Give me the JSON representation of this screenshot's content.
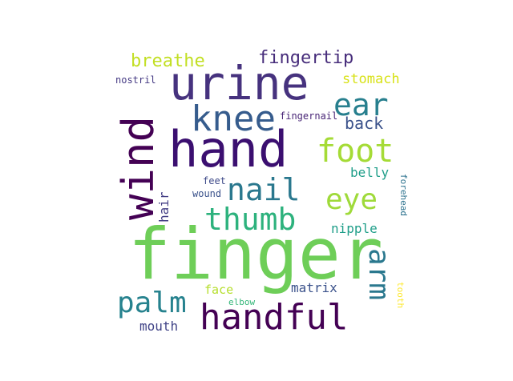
{
  "words": [
    {
      "text": "finger",
      "color": "#6ece58"
    },
    {
      "text": "hand",
      "color": "#3b0f70"
    },
    {
      "text": "urine",
      "color": "#46327e"
    },
    {
      "text": "wind",
      "color": "#440154"
    },
    {
      "text": "handful",
      "color": "#440154"
    },
    {
      "text": "knee",
      "color": "#365c8d"
    },
    {
      "text": "foot",
      "color": "#a5db36"
    },
    {
      "text": "ear",
      "color": "#277f8e"
    },
    {
      "text": "thumb",
      "color": "#2db27d"
    },
    {
      "text": "nail",
      "color": "#2a788e"
    },
    {
      "text": "eye",
      "color": "#9fda3a"
    },
    {
      "text": "palm",
      "color": "#26828e"
    },
    {
      "text": "arm",
      "color": "#2a788e"
    },
    {
      "text": "fingertip",
      "color": "#472d7b"
    },
    {
      "text": "breathe",
      "color": "#c2df23"
    },
    {
      "text": "back",
      "color": "#3b528b"
    },
    {
      "text": "stomach",
      "color": "#d8e219"
    },
    {
      "text": "belly",
      "color": "#1f9e89"
    },
    {
      "text": "nipple",
      "color": "#1f9e89"
    },
    {
      "text": "matrix",
      "color": "#3b528b"
    },
    {
      "text": "hair",
      "color": "#433e85"
    },
    {
      "text": "mouth",
      "color": "#414487"
    },
    {
      "text": "face",
      "color": "#b5de2b"
    },
    {
      "text": "nostril",
      "color": "#443983"
    },
    {
      "text": "fingernail",
      "color": "#482576"
    },
    {
      "text": "feet",
      "color": "#3e4a89"
    },
    {
      "text": "wound",
      "color": "#3b528b"
    },
    {
      "text": "forehead",
      "color": "#2c728e"
    },
    {
      "text": "elbow",
      "color": "#35b779"
    },
    {
      "text": "tooth",
      "color": "#fde725"
    }
  ]
}
